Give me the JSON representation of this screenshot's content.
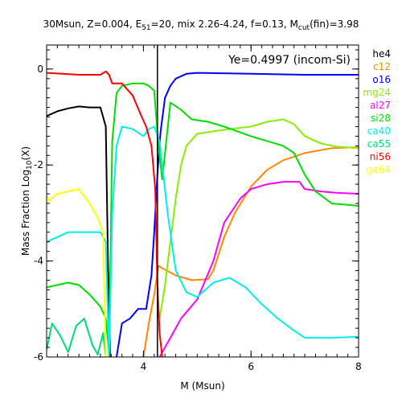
{
  "chart_data": {
    "type": "line",
    "title_parts": [
      {
        "text": "30Msun, Z=0.004, E"
      },
      {
        "text": "51",
        "sub": true
      },
      {
        "text": "=20, mix 2.26-4.24, f=0.13, M"
      },
      {
        "text": "cut",
        "sub": true
      },
      {
        "text": "(fin)=3.98"
      }
    ],
    "xlabel": "M (Msun)",
    "ylabel_parts": [
      {
        "text": "Mass Fraction  Log"
      },
      {
        "text": "10",
        "sub": true
      },
      {
        "text": "(X)"
      }
    ],
    "xlim": [
      2.2,
      8.0
    ],
    "ylim": [
      -6.0,
      0.5
    ],
    "xticks": [
      4,
      6,
      8
    ],
    "xtick_labels": [
      "4",
      "6",
      "8"
    ],
    "yticks": [
      -6,
      -4,
      -2,
      0
    ],
    "ytick_labels": [
      "-6",
      "-4",
      "-2",
      "0"
    ],
    "annotation": "Ye=0.4997 (incom-Si)",
    "legend_position": "right-outside",
    "vline_x": 4.26,
    "series": [
      {
        "name": "he4",
        "color": "#000000",
        "x": [
          2.2,
          2.4,
          2.6,
          2.8,
          3.0,
          3.2,
          3.3,
          3.34,
          3.38
        ],
        "y": [
          -0.98,
          -0.88,
          -0.82,
          -0.78,
          -0.8,
          -0.8,
          -1.2,
          -4.0,
          -6.0
        ]
      },
      {
        "name": "c12",
        "color": "#ff8800",
        "x": [
          4.0,
          4.1,
          4.2,
          4.28,
          4.35,
          4.6,
          4.9,
          5.2,
          5.3,
          5.5,
          5.7,
          6.0,
          6.3,
          6.6,
          7.0,
          7.5,
          8.0
        ],
        "y": [
          -6.0,
          -5.3,
          -4.7,
          -4.1,
          -4.15,
          -4.3,
          -4.4,
          -4.38,
          -4.2,
          -3.5,
          -3.0,
          -2.45,
          -2.1,
          -1.9,
          -1.75,
          -1.65,
          -1.63
        ]
      },
      {
        "name": "o16",
        "color": "#0000ff",
        "x": [
          3.5,
          3.6,
          3.75,
          3.9,
          4.05,
          4.15,
          4.2,
          4.26,
          4.32,
          4.4,
          4.5,
          4.6,
          4.8,
          5.0,
          6.0,
          7.0,
          8.0
        ],
        "y": [
          -6.0,
          -5.3,
          -5.2,
          -5.0,
          -5.0,
          -4.3,
          -3.4,
          -2.2,
          -1.3,
          -0.6,
          -0.35,
          -0.2,
          -0.1,
          -0.08,
          -0.1,
          -0.12,
          -0.12
        ]
      },
      {
        "name": "mg24",
        "color": "#88ee00",
        "x": [
          4.3,
          4.4,
          4.5,
          4.6,
          4.7,
          4.8,
          5.0,
          5.3,
          5.6,
          6.0,
          6.3,
          6.6,
          6.8,
          7.0,
          7.3,
          7.6,
          8.0
        ],
        "y": [
          -5.2,
          -4.5,
          -3.6,
          -2.7,
          -2.0,
          -1.6,
          -1.35,
          -1.3,
          -1.25,
          -1.2,
          -1.1,
          -1.05,
          -1.15,
          -1.4,
          -1.55,
          -1.62,
          -1.65
        ]
      },
      {
        "name": "al27",
        "color": "#ff00ff",
        "x": [
          4.3,
          4.5,
          4.7,
          5.0,
          5.3,
          5.5,
          5.8,
          6.0,
          6.3,
          6.6,
          6.9,
          7.0,
          7.3,
          7.6,
          8.0
        ],
        "y": [
          -6.0,
          -5.6,
          -5.2,
          -4.8,
          -4.0,
          -3.2,
          -2.7,
          -2.5,
          -2.4,
          -2.35,
          -2.35,
          -2.5,
          -2.55,
          -2.58,
          -2.6
        ]
      },
      {
        "name": "si28",
        "color": "#00dd00",
        "x": [
          2.2,
          2.4,
          2.6,
          2.8,
          3.0,
          3.2,
          3.3,
          3.36,
          3.42,
          3.5,
          3.6,
          3.8,
          4.0,
          4.1,
          4.2,
          4.28,
          4.35,
          4.5,
          4.7,
          4.9,
          5.2,
          5.5,
          6.0,
          6.3,
          6.6,
          6.8,
          7.0,
          7.2,
          7.5,
          8.0
        ],
        "y": [
          -4.55,
          -4.5,
          -4.45,
          -4.5,
          -4.7,
          -4.95,
          -5.2,
          -5.9,
          -1.5,
          -0.5,
          -0.35,
          -0.3,
          -0.3,
          -0.35,
          -0.45,
          -1.6,
          -2.3,
          -0.7,
          -0.85,
          -1.05,
          -1.1,
          -1.2,
          -1.4,
          -1.5,
          -1.6,
          -1.75,
          -2.2,
          -2.55,
          -2.8,
          -2.85
        ]
      },
      {
        "name": "ca40",
        "color": "#00eeee",
        "x": [
          2.2,
          2.4,
          2.6,
          2.8,
          3.0,
          3.2,
          3.3,
          3.36,
          3.42,
          3.5,
          3.6,
          3.8,
          4.0,
          4.1,
          4.2,
          4.3,
          4.45,
          4.6,
          4.8,
          5.0,
          5.3,
          5.6,
          5.9,
          6.2,
          6.5,
          6.8,
          7.0,
          7.5,
          8.0
        ],
        "y": [
          -3.6,
          -3.5,
          -3.4,
          -3.4,
          -3.4,
          -3.4,
          -3.6,
          -6.0,
          -3.0,
          -1.6,
          -1.2,
          -1.25,
          -1.4,
          -1.25,
          -1.2,
          -1.5,
          -3.0,
          -4.2,
          -4.65,
          -4.75,
          -4.45,
          -4.35,
          -4.55,
          -4.9,
          -5.2,
          -5.45,
          -5.6,
          -5.6,
          -5.58
        ]
      },
      {
        "name": "ca55",
        "color": "#00dd77",
        "x": [
          2.2,
          2.3,
          2.45,
          2.6,
          2.75,
          2.9,
          3.05,
          3.15,
          3.25,
          3.3
        ],
        "y": [
          -5.85,
          -5.3,
          -5.55,
          -5.9,
          -5.35,
          -5.2,
          -5.75,
          -5.95,
          -5.5,
          -6.0
        ]
      },
      {
        "name": "ni56",
        "color": "#ff0000",
        "x": [
          2.2,
          2.5,
          2.8,
          3.0,
          3.2,
          3.3,
          3.36,
          3.42,
          3.6,
          3.8,
          3.95,
          4.05,
          4.15,
          4.22,
          4.26,
          4.3,
          4.35
        ],
        "y": [
          -0.08,
          -0.1,
          -0.12,
          -0.12,
          -0.12,
          -0.05,
          -0.12,
          -0.3,
          -0.3,
          -0.55,
          -0.95,
          -1.2,
          -1.6,
          -2.5,
          -4.5,
          -5.5,
          -6.0
        ]
      },
      {
        "name": "ge64",
        "color": "#ffff00",
        "x": [
          2.2,
          2.25,
          2.4,
          2.6,
          2.8,
          3.0,
          3.15,
          3.25,
          3.3
        ],
        "y": [
          -2.65,
          -2.75,
          -2.6,
          -2.55,
          -2.5,
          -2.8,
          -3.1,
          -3.4,
          -6.0
        ]
      }
    ]
  }
}
